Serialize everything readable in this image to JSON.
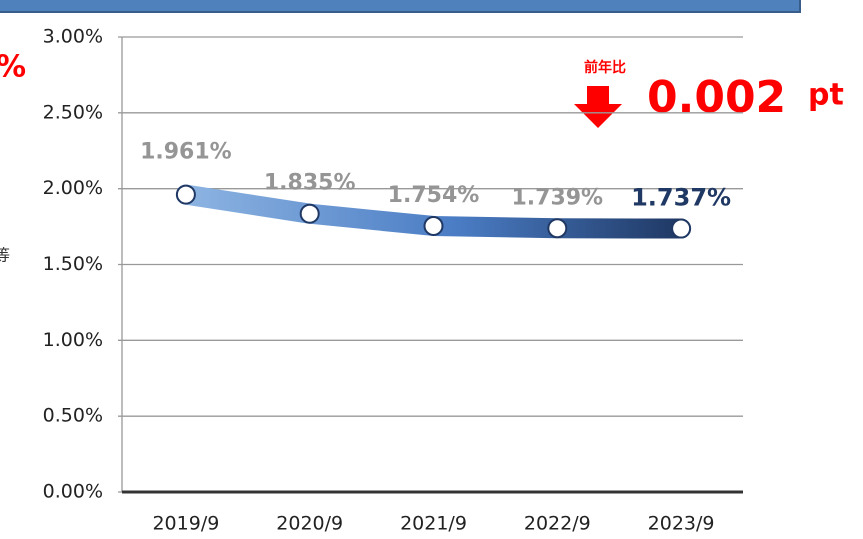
{
  "chart_data": {
    "type": "line",
    "categories": [
      "2019/9",
      "2020/9",
      "2021/9",
      "2022/9",
      "2023/9"
    ],
    "series": [
      {
        "name": null,
        "color": "#1f3864",
        "values": [
          1.961,
          1.835,
          1.754,
          1.739,
          1.737
        ],
        "value_labels": [
          "1.961%",
          "1.835%",
          "1.754%",
          "1.739%",
          "1.737%"
        ]
      }
    ],
    "ylim": [
      0,
      3
    ],
    "yticks": [
      {
        "value": 0,
        "label": "0.00%"
      },
      {
        "value": 0.5,
        "label": "0.50%"
      },
      {
        "value": 1,
        "label": "1.00%"
      },
      {
        "value": 1.5,
        "label": "1.50%"
      },
      {
        "value": 2,
        "label": "2.00%"
      },
      {
        "value": 2.5,
        "label": "2.50%"
      },
      {
        "value": 3,
        "label": "3.00%"
      }
    ],
    "grid": true,
    "annotations": {
      "change_label": "前年比",
      "change_value": "0.002",
      "change_unit": "pt"
    },
    "left_fragments": [
      "%",
      "等"
    ]
  }
}
